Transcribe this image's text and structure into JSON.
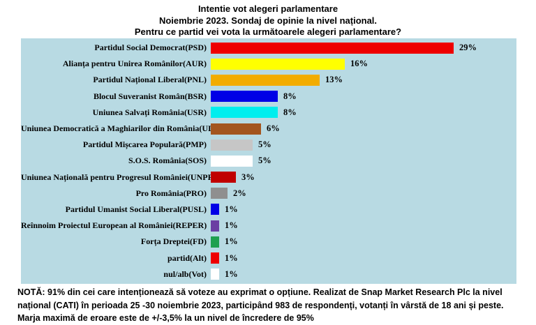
{
  "title": {
    "lines": [
      "Intentie vot alegeri parlamentare",
      "Noiembrie 2023. Sondaj de opinie la nivel național.",
      "Pentru ce partid vei vota la următoarele alegeri parlamentare?"
    ]
  },
  "chart_data": {
    "type": "bar",
    "orientation": "horizontal",
    "title": "Intentie vot alegeri parlamentare. Noiembrie 2023. Sondaj de opinie la nivel național. Pentru ce partid vei vota la următoarele alegeri parlamentare?",
    "categories": [
      "Partidul Social Democrat(PSD)",
      "Alianța pentru Unirea Românilor(AUR)",
      "Partidul Național Liberal(PNL)",
      "Blocul Suveranist Român(BSR)",
      "Uniunea Salvați România(USR)",
      "Uniunea Democratică a Maghiarilor din România(UDMR)",
      "Partidul Mișcarea Populară(PMP)",
      "S.O.S. România(SOS)",
      "Uniunea Națională pentru Progresul României(UNPR)",
      "Pro România(PRO)",
      "Partidul Umanist Social Liberal(PUSL)",
      "Reînnoim Proiectul European al României(REPER)",
      "Forța Dreptei(FD)",
      "partid(Alt)",
      "nul/alb(Vot)"
    ],
    "values": [
      29,
      16,
      13,
      8,
      8,
      6,
      5,
      5,
      3,
      2,
      1,
      1,
      1,
      1,
      1
    ],
    "value_labels": [
      "29%",
      "16%",
      "13%",
      "8%",
      "8%",
      "6%",
      "5%",
      "5%",
      "3%",
      "2%",
      "1%",
      "1%",
      "1%",
      "1%",
      "1%"
    ],
    "bar_colors": [
      "#EE0000",
      "#FFFF00",
      "#F2AC00",
      "#0000E6",
      "#00EEEE",
      "#A3551E",
      "#C6C6C6",
      "#FFFFFF",
      "#C00000",
      "#8F8F8F",
      "#0000E6",
      "#6B3FA3",
      "#1FA04F",
      "#EE0000",
      "#FFFFFF"
    ],
    "xlim": [
      0,
      30
    ],
    "grid": false,
    "legend": false,
    "plot_background": "#B8DAE3"
  },
  "footer": {
    "lines": [
      "NOTĂ: 91% din cei care intenționează să voteze au exprimat o opțiune. Realizat de Snap Market Research Plc la nivel",
      "național (CATI) în perioada 25 -30 noiembrie 2023, participând 983 de respondenți, votanți în vârstă de 18 ani și peste.",
      "Marja maximă de eroare este de +/-3,5% la un nivel de încredere de 95%"
    ]
  },
  "colors": {
    "page_background": "#FFFFFF",
    "plot_background": "#B8DAE3",
    "text": "#000000"
  }
}
